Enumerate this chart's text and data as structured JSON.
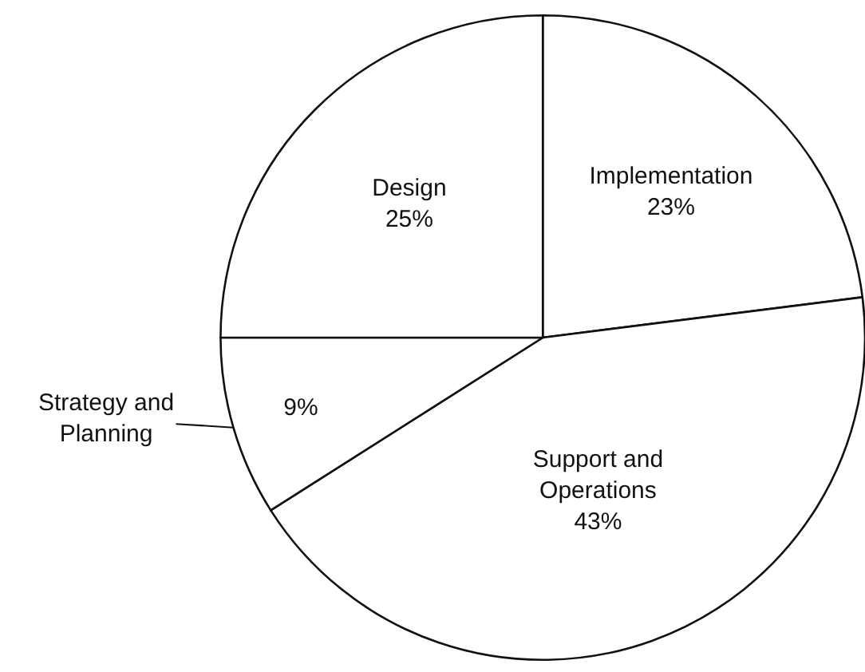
{
  "chart_data": {
    "type": "pie",
    "categories": [
      "Implementation",
      "Support and\nOperations",
      "Strategy and\nPlanning",
      "Design"
    ],
    "values": [
      23,
      43,
      9,
      25
    ],
    "colors": [
      "#ffffff",
      "#ffffff",
      "#ffffff",
      "#ffffff"
    ],
    "value_labels": [
      "23%",
      "43%",
      "9%",
      "25%"
    ],
    "legend": false
  }
}
